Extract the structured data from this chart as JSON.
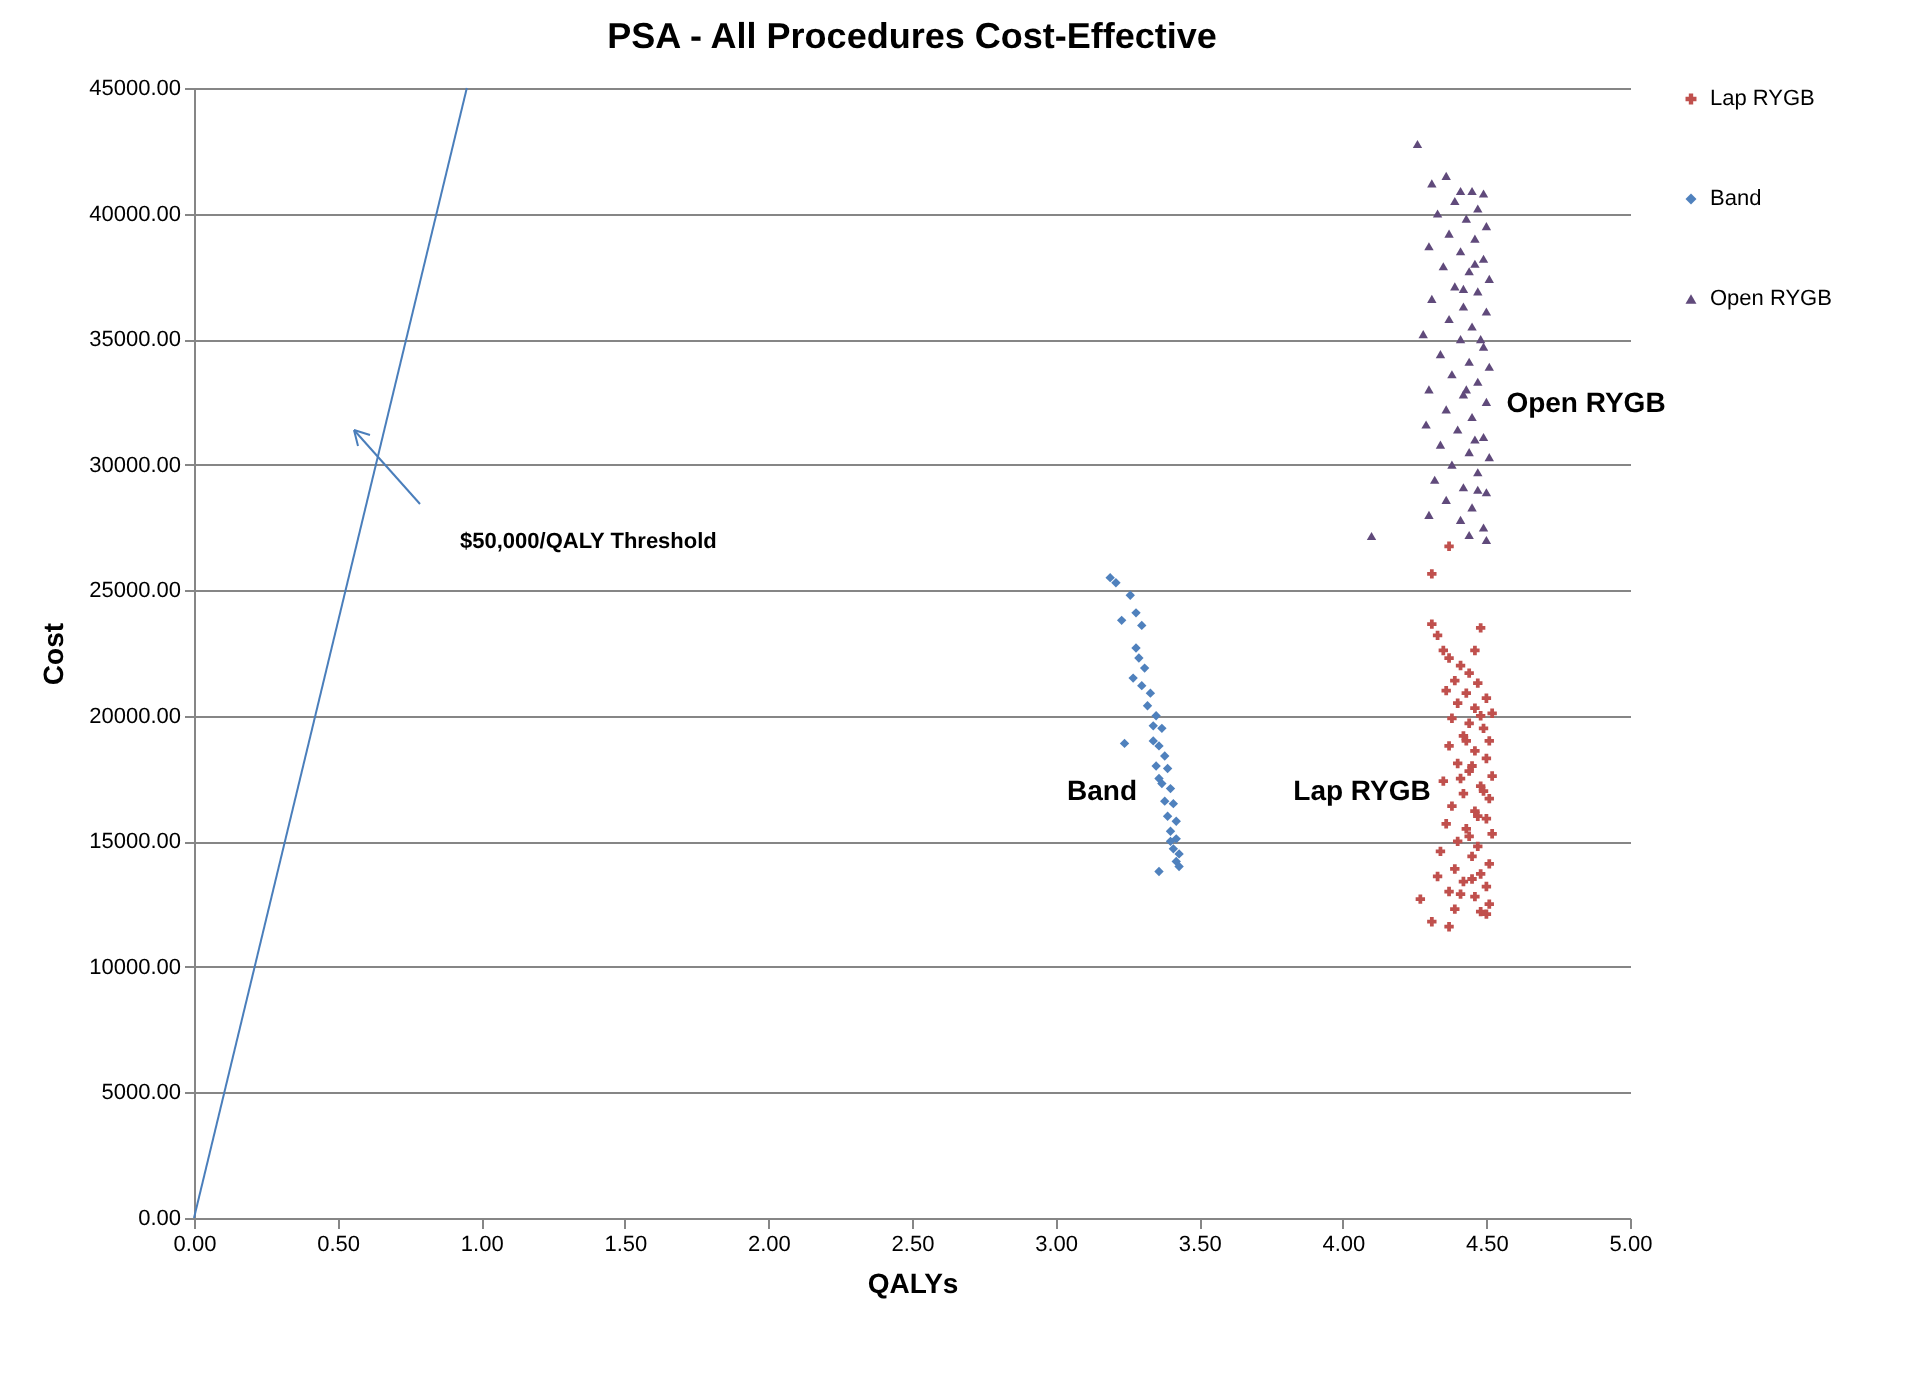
{
  "chart_data": {
    "type": "scatter",
    "title": "PSA - All Procedures Cost-Effective",
    "xlabel": "QALYs",
    "ylabel": "Cost",
    "xlim": [
      0,
      5
    ],
    "xticks": [
      {
        "value": 0,
        "label": "0.00"
      },
      {
        "value": 0.5,
        "label": "0.50"
      },
      {
        "value": 1,
        "label": "1.00"
      },
      {
        "value": 1.5,
        "label": "1.50"
      },
      {
        "value": 2,
        "label": "2.00"
      },
      {
        "value": 2.5,
        "label": "2.50"
      },
      {
        "value": 3,
        "label": "3.00"
      },
      {
        "value": 3.5,
        "label": "3.50"
      },
      {
        "value": 4,
        "label": "4.00"
      },
      {
        "value": 4.5,
        "label": "4.50"
      },
      {
        "value": 5,
        "label": "5.00"
      }
    ],
    "ylim": [
      0,
      45000
    ],
    "yticks": [
      {
        "value": 0,
        "label": "0.00"
      },
      {
        "value": 5000,
        "label": "5000.00"
      },
      {
        "value": 10000,
        "label": "10000.00"
      },
      {
        "value": 15000,
        "label": "15000.00"
      },
      {
        "value": 20000,
        "label": "20000.00"
      },
      {
        "value": 25000,
        "label": "25000.00"
      },
      {
        "value": 30000,
        "label": "30000.00"
      },
      {
        "value": 35000,
        "label": "35000.00"
      },
      {
        "value": 40000,
        "label": "40000.00"
      },
      {
        "value": 45000,
        "label": "45000.00"
      }
    ],
    "grid": "y",
    "legend": "right",
    "annotations": [
      "$50,000/QALY Threshold",
      "Band",
      "Lap RYGB",
      "Open RYGB"
    ],
    "series": [
      {
        "name": "Lap RYGB",
        "color": "#c0504d",
        "marker": "cross",
        "x": [
          4.37,
          4.31,
          4.31,
          4.48,
          4.33,
          4.35,
          4.46,
          4.37,
          4.41,
          4.44,
          4.39,
          4.47,
          4.36,
          4.43,
          4.5,
          4.4,
          4.46,
          4.52,
          4.38,
          4.44,
          4.49,
          4.42,
          4.51,
          4.37,
          4.46,
          4.5,
          4.4,
          4.44,
          4.52,
          4.35,
          4.48,
          4.42,
          4.51,
          4.38,
          4.46,
          4.5,
          4.36,
          4.43,
          4.52,
          4.4,
          4.47,
          4.34,
          4.45,
          4.51,
          4.39,
          4.48,
          4.42,
          4.5,
          4.37,
          4.46,
          4.51,
          4.48,
          4.5,
          4.27,
          4.31,
          4.37,
          4.39,
          4.33,
          4.41,
          4.44,
          4.47,
          4.49,
          4.45,
          4.43,
          4.48,
          4.41,
          4.45
        ],
        "values": [
          26750,
          25650,
          23650,
          23500,
          23200,
          22600,
          22600,
          22300,
          22000,
          21700,
          21400,
          21300,
          21000,
          20900,
          20700,
          20500,
          20300,
          20100,
          19900,
          19700,
          19500,
          19200,
          19000,
          18800,
          18600,
          18300,
          18100,
          17800,
          17600,
          17400,
          17200,
          16900,
          16700,
          16400,
          16200,
          15900,
          15700,
          15500,
          15300,
          15000,
          14800,
          14600,
          14400,
          14100,
          13900,
          13700,
          13400,
          13200,
          13000,
          12800,
          12500,
          12200,
          12100,
          12700,
          11800,
          11600,
          12300,
          13600,
          12900,
          15200,
          16000,
          17000,
          18000,
          19000,
          20000,
          17500,
          13500
        ]
      },
      {
        "name": "Band",
        "color": "#4f81bd",
        "marker": "diamond",
        "x": [
          3.19,
          3.21,
          3.26,
          3.28,
          3.23,
          3.3,
          3.28,
          3.29,
          3.27,
          3.31,
          3.3,
          3.33,
          3.32,
          3.35,
          3.34,
          3.37,
          3.24,
          3.36,
          3.38,
          3.35,
          3.39,
          3.37,
          3.4,
          3.38,
          3.41,
          3.39,
          3.42,
          3.4,
          3.42,
          3.41,
          3.43,
          3.42,
          3.36,
          3.43,
          3.4,
          3.36,
          3.34
        ],
        "values": [
          25500,
          25300,
          24800,
          24100,
          23800,
          23600,
          22700,
          22300,
          21500,
          21900,
          21200,
          20900,
          20400,
          20000,
          19600,
          19500,
          18900,
          18800,
          18400,
          18000,
          17900,
          17300,
          17100,
          16600,
          16500,
          16000,
          15800,
          15400,
          15100,
          14700,
          14500,
          14200,
          13800,
          14000,
          15000,
          17500,
          19000
        ]
      },
      {
        "name": "Open RYGB",
        "color": "#604a7b",
        "marker": "triangle",
        "x": [
          4.26,
          4.1,
          4.36,
          4.31,
          4.41,
          4.49,
          4.45,
          4.39,
          4.47,
          4.33,
          4.43,
          4.5,
          4.37,
          4.46,
          4.3,
          4.41,
          4.49,
          4.35,
          4.44,
          4.51,
          4.39,
          4.47,
          4.31,
          4.42,
          4.5,
          4.37,
          4.45,
          4.28,
          4.41,
          4.49,
          4.34,
          4.44,
          4.51,
          4.38,
          4.47,
          4.3,
          4.42,
          4.5,
          4.36,
          4.45,
          4.29,
          4.4,
          4.49,
          4.34,
          4.44,
          4.51,
          4.38,
          4.47,
          4.32,
          4.42,
          4.5,
          4.36,
          4.45,
          4.3,
          4.41,
          4.49,
          4.44,
          4.5,
          4.46,
          4.48,
          4.43,
          4.47,
          4.42,
          4.46
        ],
        "values": [
          42770,
          27160,
          41500,
          41200,
          40900,
          40800,
          40900,
          40500,
          40200,
          40000,
          39800,
          39500,
          39200,
          39000,
          38700,
          38500,
          38200,
          37900,
          37700,
          37400,
          37100,
          36900,
          36600,
          36300,
          36100,
          35800,
          35500,
          35200,
          35000,
          34700,
          34400,
          34100,
          33900,
          33600,
          33300,
          33000,
          32800,
          32500,
          32200,
          31900,
          31600,
          31400,
          31100,
          30800,
          30500,
          30300,
          30000,
          29700,
          29400,
          29100,
          28900,
          28600,
          28300,
          28000,
          27800,
          27500,
          27200,
          27000,
          38000,
          35000,
          33000,
          29000,
          37000,
          31000
        ]
      },
      {
        "type": "line",
        "color": "#4a7ebb",
        "x": [
          0,
          0.95
        ],
        "values": [
          0,
          45000
        ]
      }
    ]
  }
}
